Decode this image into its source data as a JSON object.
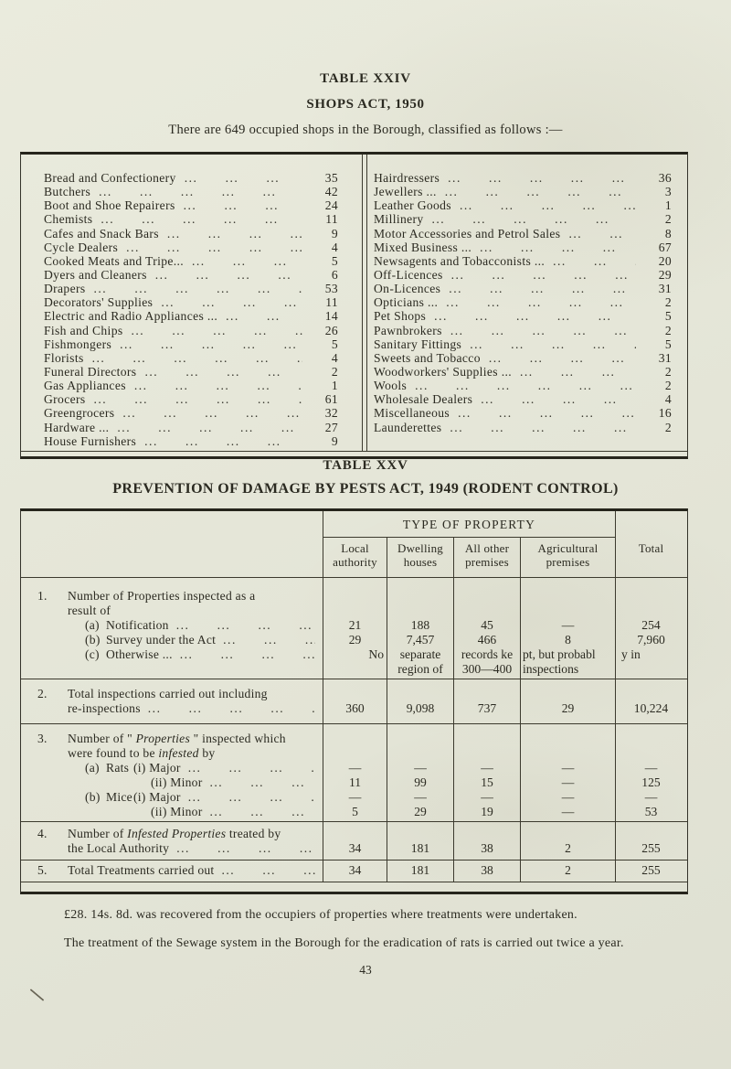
{
  "colors": {
    "paper": "#e5e6d8",
    "ink": "#2b2a21",
    "rule": "#3c3a2e"
  },
  "page_number": "43",
  "table24": {
    "title": "TABLE XXIV",
    "subtitle": "SHOPS ACT, 1950",
    "intro": "There are 649 occupied shops in the Borough, classified as follows :—",
    "left": [
      {
        "label": "Bread and Confectionery",
        "value": "35"
      },
      {
        "label": "Butchers",
        "value": "42"
      },
      {
        "label": "Boot and Shoe Repairers",
        "value": "24"
      },
      {
        "label": "Chemists",
        "value": "11"
      },
      {
        "label": "Cafes and Snack Bars",
        "value": "9"
      },
      {
        "label": "Cycle Dealers",
        "value": "4"
      },
      {
        "label": "Cooked Meats and Tripe...",
        "value": "5"
      },
      {
        "label": "Dyers and Cleaners",
        "value": "6"
      },
      {
        "label": "Drapers",
        "value": "53"
      },
      {
        "label": "Decorators' Supplies",
        "value": "11"
      },
      {
        "label": "Electric and Radio Appliances ...",
        "value": "14"
      },
      {
        "label": "Fish and Chips",
        "value": "26"
      },
      {
        "label": "Fishmongers",
        "value": "5"
      },
      {
        "label": "Florists",
        "value": "4"
      },
      {
        "label": "Funeral Directors",
        "value": "2"
      },
      {
        "label": "Gas Appliances",
        "value": "1"
      },
      {
        "label": "Grocers",
        "value": "61"
      },
      {
        "label": "Greengrocers",
        "value": "32"
      },
      {
        "label": "Hardware ...",
        "value": "27"
      },
      {
        "label": "House Furnishers",
        "value": "9"
      }
    ],
    "right": [
      {
        "label": "Hairdressers",
        "value": "36"
      },
      {
        "label": "Jewellers ...",
        "value": "3"
      },
      {
        "label": "Leather Goods",
        "value": "1"
      },
      {
        "label": "Millinery",
        "value": "2"
      },
      {
        "label": "Motor Accessories and Petrol Sales",
        "value": "8"
      },
      {
        "label": "Mixed Business ...",
        "value": "67"
      },
      {
        "label": "Newsagents and Tobacconists ...",
        "value": "20"
      },
      {
        "label": "Off-Licences",
        "value": "29"
      },
      {
        "label": "On-Licences",
        "value": "31"
      },
      {
        "label": "Opticians ...",
        "value": "2"
      },
      {
        "label": "Pet Shops",
        "value": "5"
      },
      {
        "label": "Pawnbrokers",
        "value": "2"
      },
      {
        "label": "Sanitary Fittings",
        "value": "5"
      },
      {
        "label": "Sweets and Tobacco",
        "value": "31"
      },
      {
        "label": "Woodworkers' Supplies ...",
        "value": "2"
      },
      {
        "label": "Wools",
        "value": "2"
      },
      {
        "label": "Wholesale Dealers",
        "value": "4"
      },
      {
        "label": "Miscellaneous",
        "value": "16"
      },
      {
        "label": "Launderettes",
        "value": "2"
      }
    ]
  },
  "table25": {
    "title": "TABLE XXV",
    "subtitle": "PREVENTION OF DAMAGE BY PESTS ACT, 1949 (RODENT CONTROL)",
    "header": {
      "group": "TYPE OF PROPERTY",
      "cols": [
        "Local authority",
        "Dwelling houses",
        "All other premises",
        "Agricultural premises"
      ],
      "total": "Total"
    },
    "rows": [
      {
        "num": "1.",
        "lines": [
          {
            "kind": "main-first",
            "parts": [
              {
                "t": "Number of Properties inspected as a"
              }
            ]
          },
          {
            "kind": "main",
            "parts": [
              {
                "t": "result of"
              }
            ]
          },
          {
            "kind": "sub",
            "pre": "(a)",
            "parts": [
              {
                "t": "Notification"
              }
            ],
            "dots": true,
            "values": [
              "21",
              "188",
              "45",
              "—",
              "254"
            ]
          },
          {
            "kind": "sub",
            "pre": "(b)",
            "parts": [
              {
                "t": "Survey under the Act"
              }
            ],
            "dots": true,
            "values": [
              "29",
              "7,457",
              "466",
              "8",
              "7,960"
            ]
          },
          {
            "kind": "sub",
            "pre": "(c)",
            "parts": [
              {
                "t": "Otherwise ..."
              }
            ],
            "dots": true,
            "flow": [
              "No",
              "separate\nregion of",
              "records ke\n300—400",
              "pt, but probabl\ninspections",
              "y in"
            ]
          },
          {
            "kind": "filler",
            "parts": []
          }
        ]
      },
      {
        "num": "2.",
        "lines": [
          {
            "kind": "main-first",
            "parts": [
              {
                "t": "Total inspections carried out including"
              }
            ]
          },
          {
            "kind": "main",
            "parts": [
              {
                "t": "re-inspections"
              }
            ],
            "dots": true,
            "values": [
              "360",
              "9,098",
              "737",
              "29",
              "10,224"
            ]
          }
        ]
      },
      {
        "num": "3.",
        "lines": [
          {
            "kind": "main-first",
            "parts": [
              {
                "t": "Number of \" "
              },
              {
                "t": "Properties",
                "i": true
              },
              {
                "t": " \" inspected which"
              }
            ]
          },
          {
            "kind": "main",
            "parts": [
              {
                "t": "were found to be "
              },
              {
                "t": "infested",
                "i": true
              },
              {
                "t": " by"
              }
            ]
          },
          {
            "kind": "sub",
            "pre": "(a)",
            "mid": "Rats",
            "parts": [
              {
                "t": "(i) Major"
              }
            ],
            "dots": true,
            "values": [
              "—",
              "—",
              "—",
              "—",
              "—"
            ]
          },
          {
            "kind": "sub2",
            "parts": [
              {
                "t": "(ii) Minor"
              }
            ],
            "dots": true,
            "values": [
              "11",
              "99",
              "15",
              "—",
              "125"
            ]
          },
          {
            "kind": "sub",
            "pre": "(b)",
            "mid": "Mice",
            "parts": [
              {
                "t": "(i) Major"
              }
            ],
            "dots": true,
            "values": [
              "—",
              "—",
              "—",
              "—",
              "—"
            ]
          },
          {
            "kind": "sub2",
            "parts": [
              {
                "t": "(ii) Minor"
              }
            ],
            "dots": true,
            "values": [
              "5",
              "29",
              "19",
              "—",
              "53"
            ]
          }
        ]
      },
      {
        "num": "4.",
        "lines": [
          {
            "kind": "main-first",
            "parts": [
              {
                "t": "Number of "
              },
              {
                "t": "Infested Properties",
                "i": true
              },
              {
                "t": " treated by"
              }
            ]
          },
          {
            "kind": "main",
            "parts": [
              {
                "t": "the Local Authority"
              }
            ],
            "dots": true,
            "values": [
              "34",
              "181",
              "38",
              "2",
              "255"
            ]
          }
        ]
      },
      {
        "num": "5.",
        "lines": [
          {
            "kind": "main-first",
            "parts": [
              {
                "t": "Total Treatments carried out"
              }
            ],
            "dots": true,
            "values": [
              "34",
              "181",
              "38",
              "2",
              "255"
            ]
          }
        ]
      }
    ]
  },
  "footnotes": [
    "£28. 14s. 8d. was recovered from the occupiers of properties where treatments were undertaken.",
    "The treatment of the Sewage system in the Borough for the eradication of rats is carried out twice a year."
  ]
}
